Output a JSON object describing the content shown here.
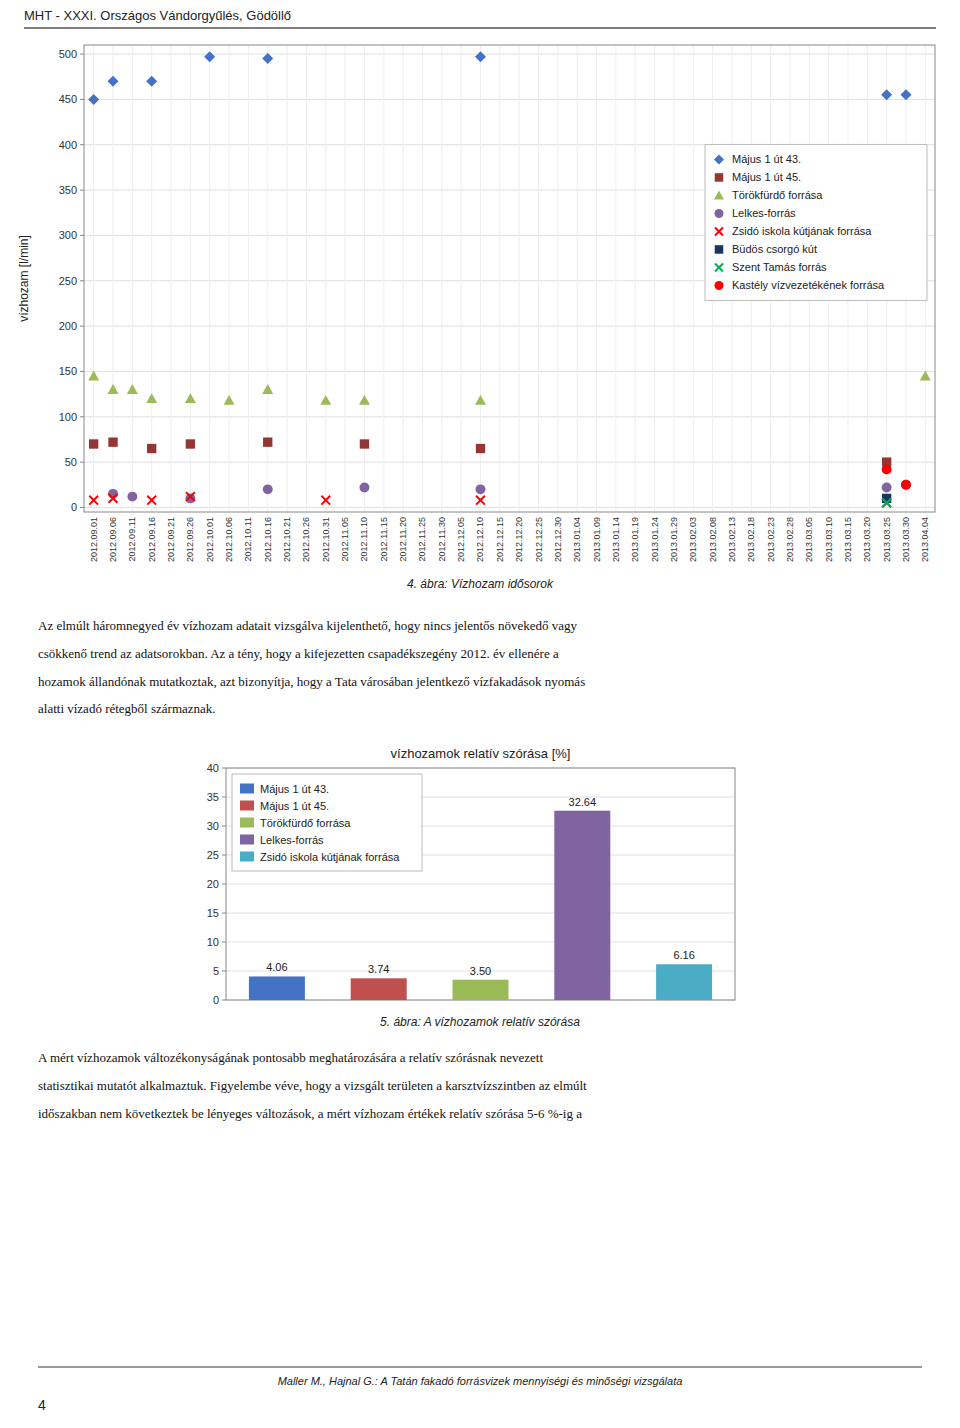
{
  "page_title": "MHT - XXXI. Országos Vándorgyűlés, Gödöllő",
  "chart_data": [
    {
      "type": "scatter",
      "ylabel": "vízhozam [l/min]",
      "caption": "4. ábra: Vízhozam idősorok",
      "categories": [
        "2012.09.01",
        "2012.09.06",
        "2012.09.11",
        "2012.09.16",
        "2012.09.21",
        "2012.09.26",
        "2012.10.01",
        "2012.10.06",
        "2012.10.11",
        "2012.10.16",
        "2012.10.21",
        "2012.10.26",
        "2012.10.31",
        "2012.11.05",
        "2012.11.10",
        "2012.11.15",
        "2012.11.20",
        "2012.11.25",
        "2012.11.30",
        "2012.12.05",
        "2012.12.10",
        "2012.12.15",
        "2012.12.20",
        "2012.12.25",
        "2012.12.30",
        "2013.01.04",
        "2013.01.09",
        "2013.01.14",
        "2013.01.19",
        "2013.01.24",
        "2013.01.29",
        "2013.02.03",
        "2013.02.08",
        "2013.02.13",
        "2013.02.18",
        "2013.02.23",
        "2013.02.28",
        "2013.03.05",
        "2013.03.10",
        "2013.03.15",
        "2013.03.20",
        "2013.03.25",
        "2013.03.30",
        "2013.04.04"
      ],
      "series": [
        {
          "name": "Május 1 út 43.",
          "color": "#4472C4",
          "marker": "diamond",
          "x": [
            "2012.09.01",
            "2012.09.06",
            "2012.09.16",
            "2012.10.01",
            "2012.10.16",
            "2012.12.10",
            "2013.03.25",
            "2013.03.30"
          ],
          "values": [
            450,
            470,
            470,
            497,
            495,
            497,
            455,
            455
          ]
        },
        {
          "name": "Május 1 út 45.",
          "color": "#943634",
          "marker": "square",
          "x": [
            "2012.09.01",
            "2012.09.06",
            "2012.09.16",
            "2012.09.26",
            "2012.10.16",
            "2012.11.10",
            "2012.12.10",
            "2013.03.25"
          ],
          "values": [
            70,
            72,
            65,
            70,
            72,
            70,
            65,
            50
          ]
        },
        {
          "name": "Törökfürdő forrása",
          "color": "#9BBB59",
          "marker": "triangle",
          "x": [
            "2012.09.01",
            "2012.09.06",
            "2012.09.11",
            "2012.09.16",
            "2012.09.26",
            "2012.10.06",
            "2012.10.16",
            "2012.10.31",
            "2012.11.10",
            "2012.12.10",
            "2013.04.04"
          ],
          "values": [
            145,
            130,
            130,
            120,
            120,
            118,
            130,
            118,
            118,
            118,
            145
          ]
        },
        {
          "name": "Lelkes-forrás",
          "color": "#8064A2",
          "marker": "circle",
          "x": [
            "2012.09.06",
            "2012.09.11",
            "2012.09.26",
            "2012.10.16",
            "2012.11.10",
            "2012.12.10",
            "2013.03.25",
            "2013.03.30"
          ],
          "values": [
            15,
            12,
            10,
            20,
            22,
            20,
            22,
            25
          ]
        },
        {
          "name": "Zsidó iskola kútjának forrása",
          "color": "#FF0000",
          "marker": "x",
          "x": [
            "2012.09.01",
            "2012.09.06",
            "2012.09.16",
            "2012.09.26",
            "2012.10.31",
            "2012.12.10",
            "2013.03.25"
          ],
          "values": [
            8,
            10,
            8,
            12,
            8,
            8,
            5
          ]
        },
        {
          "name": "Büdös csorgó kút",
          "color": "#17375E",
          "marker": "square",
          "x": [
            "2013.03.25"
          ],
          "values": [
            10
          ]
        },
        {
          "name": "Szent Tamás forrás",
          "color": "#00B050",
          "marker": "x",
          "x": [
            "2013.03.25"
          ],
          "values": [
            5
          ]
        },
        {
          "name": "Kastély vízvezetékének forrása",
          "color": "#FF0000",
          "marker": "circle",
          "x": [
            "2013.03.25",
            "2013.03.30"
          ],
          "values": [
            42,
            25
          ]
        }
      ],
      "ylim": [
        -5,
        510
      ],
      "yticks": [
        0,
        50,
        100,
        150,
        200,
        250,
        300,
        350,
        400,
        450,
        500
      ],
      "grid": true,
      "legend": "right"
    },
    {
      "type": "bar",
      "title": "vízhozamok relatív szórása [%]",
      "caption": "5. ábra: A vízhozamok relatív szórása",
      "categories": [
        "Május 1 út 43.",
        "Május 1 út 45.",
        "Törökfürdő forrása",
        "Lelkes-forrás",
        "Zsidó iskola kútjának forrása"
      ],
      "values": [
        4.06,
        3.74,
        3.5,
        32.64,
        6.16
      ],
      "value_labels": [
        "4.06",
        "3.74",
        "3.50",
        "32.64",
        "6.16"
      ],
      "colors": [
        "#4472C4",
        "#C0504D",
        "#9BBB59",
        "#8064A2",
        "#4BACC6"
      ],
      "ylim": [
        0,
        40
      ],
      "yticks": [
        0,
        5,
        10,
        15,
        20,
        25,
        30,
        35,
        40
      ],
      "grid": true,
      "legend": "upper left",
      "data_labels": true,
      "tick_labels": "y"
    }
  ],
  "text1_lines": [
    "Az elmúlt háromnegyed év vízhozam adatait vizsgálva kijelenthető, hogy nincs jelentős növekedő vagy",
    "csökkenő trend az adatsorokban. Az a tény, hogy a kifejezetten csapadékszegény 2012. év ellenére a",
    "hozamok állandónak mutatkoztak, azt bizonyítja, hogy a Tata városában jelentkező vízfakadások nyomás",
    "alatti vízadó rétegből származnak."
  ],
  "text2_lines": [
    "A mért vízhozamok változékonyságának pontosabb meghatározására a relatív szórásnak nevezett",
    "statisztikai mutatót alkalmaztuk. Figyelembe véve, hogy a vizsgált területen a karsztvízszintben az elmúlt",
    "időszakban nem következtek be lényeges változások, a mért vízhozam értékek relatív szórása 5-6 %-ig a"
  ],
  "footer_text": "Maller M., Hajnal G.: A Tatán fakadó forrásvizek mennyiségi és minőségi vizsgálata",
  "page_number": "4"
}
